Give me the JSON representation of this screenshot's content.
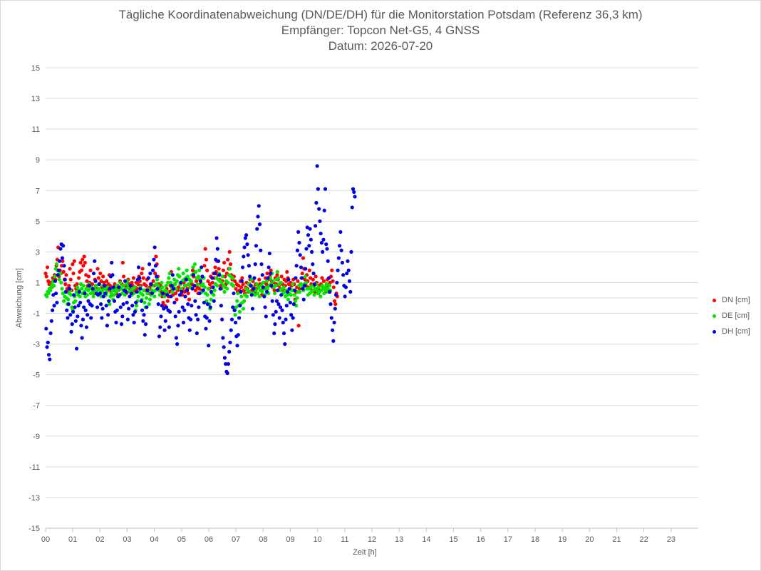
{
  "chart_data": {
    "type": "scatter",
    "title": "Tägliche Koordinatenabweichung (DN/DE/DH) für die Monitorstation Potsdam (Referenz 36,3 km)",
    "subtitle1": "Empfänger: Topcon Net-G5, 4 GNSS",
    "subtitle2": "Datum: 2026-07-20",
    "xlabel": "Zeit [h]",
    "ylabel": "Abweichung [cm]",
    "xlim": [
      0,
      24
    ],
    "ylim": [
      -15,
      15
    ],
    "x_ticks": [
      "00",
      "01",
      "02",
      "03",
      "04",
      "05",
      "06",
      "07",
      "08",
      "09",
      "10",
      "11",
      "12",
      "13",
      "14",
      "15",
      "16",
      "17",
      "18",
      "19",
      "20",
      "21",
      "22",
      "23"
    ],
    "y_ticks": [
      "15",
      "13",
      "11",
      "9",
      "7",
      "5",
      "3",
      "1",
      "-1",
      "-3",
      "-5",
      "-7",
      "-9",
      "-11",
      "-13",
      "-15"
    ],
    "grid": "horizontal",
    "legend_position": "right",
    "sample_interval_h": 0.033,
    "series": [
      {
        "name": "DN [cm]",
        "color": "#ff0000",
        "values": [
          1.6,
          1.4,
          2.0,
          1.1,
          0.9,
          0.5,
          1.0,
          0.7,
          1.3,
          0.8,
          1.5,
          1.2,
          2.1,
          2.5,
          3.3,
          1.4,
          1.8,
          1.6,
          2.1,
          2.4,
          1.7,
          1.2,
          0.9,
          1.5,
          0.6,
          0.4,
          0.8,
          1.9,
          1.2,
          0.5,
          2.2,
          1.6,
          2.4,
          0.8,
          0.6,
          0.9,
          0.5,
          1.3,
          1.7,
          2.3,
          1.8,
          2.5,
          2.1,
          2.7,
          2.3,
          1.5,
          1.1,
          0.8,
          1.4,
          1.0,
          1.8,
          0.7,
          0.9,
          0.5,
          0.3,
          1.2,
          0.8,
          0.6,
          1.9,
          1.3,
          0.9,
          1.6,
          1.1,
          0.7,
          1.4,
          1.0,
          0.6,
          0.8,
          1.1,
          0.5,
          0.9,
          1.5,
          0.8,
          0.4,
          0.2,
          0.7,
          0.5,
          0.9,
          0.6,
          0.3,
          0.8,
          0.5,
          0.2,
          1.1,
          0.6,
          0.9,
          2.3,
          1.4,
          0.8,
          0.5,
          0.3,
          0.7,
          1.2,
          0.9,
          0.6,
          0.4,
          1.0,
          0.8,
          1.3,
          0.5,
          0.7,
          1.0,
          0.6,
          0.9,
          1.4,
          1.1,
          0.8,
          1.6,
          1.9,
          1.3,
          0.9,
          0.5,
          0.8,
          1.2,
          0.6,
          0.3,
          0.7,
          0.9,
          0.5,
          0.4,
          1.1,
          0.8,
          1.6,
          2.7,
          2.2,
          1.4,
          0.9,
          0.6,
          0.8,
          0.4,
          0.1,
          -0.3,
          0.2,
          -0.5,
          0.3,
          0.6,
          -0.2,
          0.1,
          0.4,
          0.8,
          1.7,
          0.5,
          0.2,
          0.6,
          0.9,
          0.3,
          -0.1,
          0.5,
          0.7,
          1.4,
          0.9,
          0.5,
          0.2,
          0.6,
          1.0,
          0.4,
          0.8,
          1.2,
          0.6,
          0.3,
          -0.1,
          0.7,
          1.1,
          0.9,
          1.8,
          1.4,
          0.8,
          0.5,
          1.1,
          0.7,
          0.3,
          0.6,
          1.2,
          0.9,
          0.5,
          0.8,
          1.3,
          2.1,
          3.2,
          2.5,
          1.8,
          1.1,
          0.6,
          0.9,
          1.4,
          0.7,
          1.0,
          1.6,
          1.3,
          2.0,
          1.7,
          2.4,
          1.5,
          1.9,
          1.2,
          0.8,
          0.6,
          1.1,
          1.8,
          2.3,
          1.4,
          0.9,
          1.6,
          2.5,
          1.9,
          3.0,
          2.2,
          1.5,
          1.2,
          0.8,
          1.4,
          1.1,
          0.6,
          0.9,
          0.4,
          0.8,
          0.5,
          1.1,
          0.7,
          1.3,
          0.9,
          0.5,
          0.3,
          0.7,
          1.0,
          0.6,
          0.4,
          0.9,
          1.2,
          0.8,
          0.5,
          1.1,
          0.7,
          0.4,
          0.9,
          0.6,
          0.3,
          0.8,
          1.2,
          0.9,
          0.5,
          0.2,
          0.7,
          1.0,
          0.6,
          1.3,
          0.9,
          1.6,
          1.2,
          0.8,
          1.4,
          1.8,
          1.1,
          0.7,
          1.0,
          0.5,
          1.3,
          0.9,
          1.5,
          1.2,
          0.8,
          0.6,
          1.0,
          1.4,
          0.9,
          0.5,
          1.2,
          0.8,
          1.1,
          1.7,
          1.3,
          0.9,
          0.6,
          1.0,
          0.8,
          0.5,
          1.2,
          0.9,
          -0.1,
          0.4,
          0.7,
          1.1,
          -1.8,
          0.6,
          0.9,
          1.3,
          1.6,
          2.6,
          1.9,
          1.2,
          0.8,
          1.5,
          1.1,
          0.7,
          1.8,
          1.3,
          0.9,
          0.5,
          1.2,
          0.8,
          0.4,
          1.4,
          1.0,
          0.6,
          0.3,
          0.8,
          0.5,
          0.9,
          1.3,
          0.7,
          1.1,
          0.6,
          0.4,
          0.9,
          1.2,
          0.8,
          0.5,
          1.0,
          1.4,
          1.8,
          1.1,
          0.7,
          -0.2,
          -0.4,
          0.3,
          0.1
        ]
      },
      {
        "name": "DE [cm]",
        "color": "#00e600",
        "values": [
          0.2,
          0.1,
          0.4,
          0.3,
          0.6,
          0.5,
          0.7,
          0.9,
          1.1,
          0.8,
          1.4,
          1.9,
          2.2,
          1.8,
          1.5,
          1.2,
          1.6,
          1.0,
          0.6,
          0.3,
          -0.2,
          0.1,
          0.4,
          0.0,
          -0.4,
          -0.1,
          0.3,
          0.5,
          0.2,
          -0.6,
          -0.8,
          -0.3,
          0.1,
          -0.2,
          0.4,
          0.7,
          0.2,
          0.5,
          0.1,
          0.9,
          0.6,
          0.3,
          0.8,
          0.4,
          0.1,
          0.6,
          0.2,
          0.5,
          0.9,
          0.6,
          0.3,
          0.7,
          0.4,
          0.1,
          0.6,
          0.3,
          0.8,
          0.5,
          0.2,
          0.6,
          0.9,
          0.4,
          0.1,
          0.5,
          0.8,
          0.3,
          0.6,
          0.2,
          0.4,
          0.7,
          -0.2,
          -0.4,
          0.1,
          0.3,
          0.5,
          -0.1,
          0.2,
          0.6,
          0.4,
          0.8,
          0.5,
          0.1,
          0.7,
          1.0,
          0.6,
          0.3,
          0.8,
          0.5,
          0.2,
          0.6,
          0.9,
          1.1,
          0.7,
          0.4,
          0.8,
          0.5,
          0.2,
          0.6,
          0.3,
          0.7,
          -0.8,
          -0.5,
          -0.2,
          0.1,
          0.4,
          0.7,
          0.3,
          -0.1,
          0.2,
          0.5,
          -0.3,
          -0.6,
          0.0,
          0.3,
          0.6,
          -0.4,
          -0.1,
          0.2,
          0.5,
          0.8,
          0.4,
          0.1,
          0.5,
          0.9,
          1.2,
          0.8,
          0.5,
          0.2,
          0.6,
          1.0,
          0.7,
          0.4,
          0.1,
          0.5,
          0.8,
          0.4,
          1.0,
          1.3,
          1.6,
          1.0,
          0.7,
          0.4,
          0.8,
          1.2,
          0.9,
          0.6,
          1.1,
          1.5,
          1.9,
          1.4,
          0.9,
          0.6,
          1.1,
          1.6,
          1.2,
          0.8,
          1.3,
          1.8,
          1.4,
          0.9,
          1.2,
          0.7,
          1.1,
          1.5,
          2.0,
          1.6,
          2.2,
          1.7,
          1.3,
          0.9,
          1.4,
          1.8,
          1.2,
          0.8,
          0.4,
          0.9,
          1.3,
          0.7,
          0.3,
          -0.2,
          0.2,
          0.6,
          -0.4,
          -0.7,
          -0.1,
          0.3,
          0.7,
          0.2,
          0.5,
          0.9,
          1.3,
          0.8,
          1.2,
          1.6,
          1.1,
          0.6,
          1.0,
          1.4,
          0.8,
          0.4,
          0.7,
          1.1,
          0.6,
          1.0,
          1.5,
          1.9,
          1.4,
          0.9,
          1.3,
          0.8,
          -0.8,
          -1.1,
          -0.6,
          -0.2,
          0.3,
          -0.5,
          -0.9,
          -0.4,
          0.1,
          -0.3,
          -0.7,
          -0.2,
          0.2,
          0.6,
          0.1,
          0.5,
          0.9,
          0.4,
          0.8,
          1.2,
          0.7,
          0.3,
          0.6,
          0.2,
          0.5,
          0.9,
          0.3,
          0.7,
          0.1,
          0.5,
          0.8,
          0.4,
          1.0,
          0.6,
          0.2,
          0.7,
          1.1,
          0.6,
          0.3,
          0.8,
          1.3,
          0.9,
          1.6,
          1.1,
          0.7,
          0.3,
          0.8,
          1.2,
          1.7,
          1.3,
          0.9,
          0.5,
          1.0,
          0.6,
          0.3,
          0.7,
          0.4,
          0.1,
          0.5,
          0.2,
          -0.1,
          0.3,
          0.6,
          0.2,
          0.5,
          0.9,
          0.5,
          0.2,
          -0.2,
          -0.5,
          0.0,
          0.4,
          0.8,
          0.4,
          0.9,
          1.3,
          0.8,
          0.5,
          0.9,
          1.4,
          1.0,
          0.6,
          0.2,
          0.6,
          0.3,
          0.7,
          0.4,
          0.8,
          0.5,
          0.2,
          0.6,
          0.9,
          0.5,
          0.3,
          0.7,
          0.4,
          0.1,
          0.5,
          0.8,
          0.6,
          0.3,
          0.7,
          0.5,
          0.9,
          0.6,
          0.4,
          0.8,
          0.5
        ]
      },
      {
        "name": "DH [cm]",
        "color": "#0000e6",
        "values": [
          -2.0,
          -3.2,
          -2.9,
          -3.7,
          -4.0,
          -2.3,
          -1.5,
          -0.8,
          0.2,
          -0.5,
          1.1,
          0.3,
          -0.3,
          1.5,
          1.8,
          2.4,
          3.2,
          3.5,
          2.6,
          3.4,
          2.1,
          1.2,
          0.4,
          -0.8,
          -1.3,
          -0.4,
          0.6,
          -1.1,
          -2.2,
          -1.7,
          -0.9,
          0.2,
          -0.6,
          -1.5,
          -3.3,
          -1.2,
          -0.5,
          0.4,
          -0.3,
          -1.8,
          -2.6,
          -1.4,
          -0.6,
          0.3,
          -0.8,
          -1.9,
          -1.1,
          -0.2,
          0.8,
          -0.4,
          -1.3,
          -0.5,
          0.6,
          1.6,
          2.4,
          1.1,
          0.3,
          -0.6,
          0.2,
          0.9,
          0.3,
          -0.4,
          -1.3,
          -0.7,
          0.1,
          0.8,
          0.3,
          -0.5,
          -1.8,
          -1.1,
          -0.2,
          0.6,
          1.4,
          2.3,
          1.5,
          0.7,
          -0.2,
          -0.9,
          -1.6,
          -0.8,
          0.1,
          0.7,
          0.2,
          -0.6,
          -1.7,
          -1.2,
          -0.4,
          0.5,
          1.1,
          0.4,
          -0.3,
          -1.4,
          -0.7,
          0.1,
          0.8,
          0.3,
          -0.5,
          -1.1,
          -1.6,
          -0.9,
          -0.3,
          0.4,
          1.2,
          2.0,
          1.3,
          0.6,
          -0.2,
          -0.8,
          -1.5,
          -1.1,
          -2.4,
          -1.7,
          -0.6,
          0.5,
          1.3,
          2.2,
          1.6,
          0.9,
          0.3,
          1.8,
          2.5,
          3.3,
          2.1,
          1.4,
          0.6,
          -0.4,
          -2.5,
          -1.9,
          -1.2,
          -0.5,
          0.3,
          -0.7,
          -2.1,
          -1.5,
          -0.6,
          0.2,
          -0.8,
          -1.9,
          -0.9,
          0.1,
          0.8,
          1.5,
          0.6,
          -0.3,
          -1.2,
          -2.6,
          -3.0,
          -1.8,
          -0.9,
          0.2,
          1.0,
          0.4,
          -0.6,
          -1.6,
          -0.8,
          0.1,
          1.2,
          0.5,
          -0.4,
          -1.3,
          -2.1,
          -1.4,
          -0.5,
          0.6,
          1.5,
          0.8,
          -0.2,
          -1.1,
          -2.3,
          -1.4,
          -0.6,
          0.3,
          1.1,
          2.0,
          1.4,
          0.5,
          -0.3,
          -1.2,
          -2.0,
          -1.3,
          -0.4,
          -3.1,
          -1.5,
          -0.6,
          0.4,
          1.3,
          0.7,
          -0.2,
          1.6,
          2.5,
          3.9,
          3.2,
          2.4,
          1.5,
          0.6,
          -0.5,
          -1.4,
          -2.6,
          -3.2,
          -3.9,
          -4.3,
          -4.8,
          -4.9,
          -4.3,
          -3.5,
          -2.9,
          -2.1,
          -1.4,
          -0.6,
          0.3,
          -0.8,
          -1.6,
          -2.5,
          -3.1,
          -2.4,
          -1.3,
          -0.5,
          0.4,
          1.1,
          2.0,
          2.7,
          3.3,
          3.9,
          4.1,
          3.5,
          2.8,
          2.1,
          1.4,
          0.8,
          0.2,
          -0.7,
          0.6,
          1.3,
          2.2,
          3.4,
          4.5,
          5.3,
          6.0,
          4.8,
          3.1,
          2.2,
          1.5,
          0.7,
          0.1,
          -0.6,
          -1.2,
          0.4,
          1.3,
          2.0,
          2.9,
          1.6,
          0.8,
          -0.2,
          -1.1,
          -2.3,
          -1.7,
          -0.9,
          -0.2,
          0.5,
          -0.4,
          -1.3,
          -0.6,
          0.2,
          -0.8,
          -1.6,
          -2.3,
          -3.0,
          -1.4,
          -0.5,
          0.4,
          1.2,
          0.6,
          -0.3,
          -1.1,
          -2.1,
          -1.3,
          -0.4,
          0.5,
          1.3,
          2.1,
          3.1,
          4.3,
          3.6,
          2.8,
          2.0,
          1.3,
          0.6,
          -0.1,
          0.8,
          1.9,
          3.2,
          4.6,
          4.1,
          3.4,
          4.5,
          3.8,
          3.0,
          2.2,
          1.6,
          0.9,
          4.7,
          6.2,
          8.6,
          7.1,
          5.8,
          5.0,
          4.2,
          3.6,
          3.0,
          3.8,
          5.7,
          7.1,
          3.5,
          3.2,
          2.4,
          1.3,
          0.4,
          -0.4,
          -1.3,
          -2.1,
          -2.8,
          -1.6,
          -0.7,
          0.2,
          1.0,
          1.8,
          2.6,
          3.4,
          4.3,
          3.1,
          2.3,
          1.5,
          0.8,
          0.1,
          0.7,
          1.6,
          2.4,
          1.8,
          1.1,
          0.4,
          3.0,
          5.9,
          7.1,
          6.9,
          6.6
        ]
      }
    ]
  }
}
